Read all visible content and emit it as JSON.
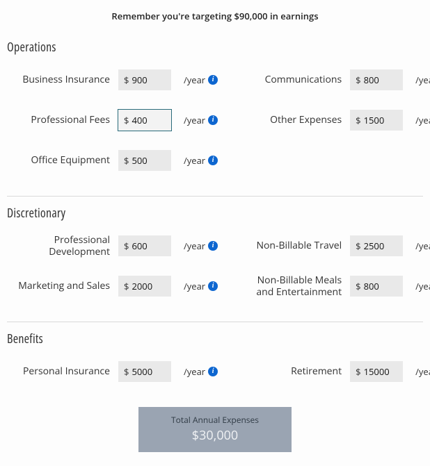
{
  "reminder": "Remember you're targeting $90,000 in earnings",
  "suffix_text": "/year",
  "currency_symbol": "$",
  "info_glyph": "i",
  "sections": {
    "operations": {
      "title": "Operations",
      "items": {
        "business_insurance": {
          "label": "Business Insurance",
          "value": "900"
        },
        "communications": {
          "label": "Communications",
          "value": "800"
        },
        "professional_fees": {
          "label": "Professional Fees",
          "value": "400",
          "focused": true
        },
        "other_expenses": {
          "label": "Other Expenses",
          "value": "1500"
        },
        "office_equipment": {
          "label": "Office Equipment",
          "value": "500"
        }
      }
    },
    "discretionary": {
      "title": "Discretionary",
      "items": {
        "prof_dev": {
          "label": "Professional Development",
          "value": "600"
        },
        "nb_travel": {
          "label": "Non-Billable Travel",
          "value": "2500"
        },
        "marketing_sales": {
          "label": "Marketing and Sales",
          "value": "2000"
        },
        "nb_meals": {
          "label": "Non-Billable Meals and Entertainment",
          "value": "800"
        }
      }
    },
    "benefits": {
      "title": "Benefits",
      "items": {
        "personal_insurance": {
          "label": "Personal Insurance",
          "value": "5000"
        },
        "retirement": {
          "label": "Retirement",
          "value": "15000"
        }
      }
    }
  },
  "total": {
    "label": "Total Annual Expenses",
    "value": "$30,000"
  },
  "colors": {
    "info_bg": "#0d66d0",
    "input_bg": "#e9e9e9",
    "focus_border": "#2a6b7a",
    "total_bg": "#9aa4b2",
    "separator": "#d9d9d9"
  }
}
